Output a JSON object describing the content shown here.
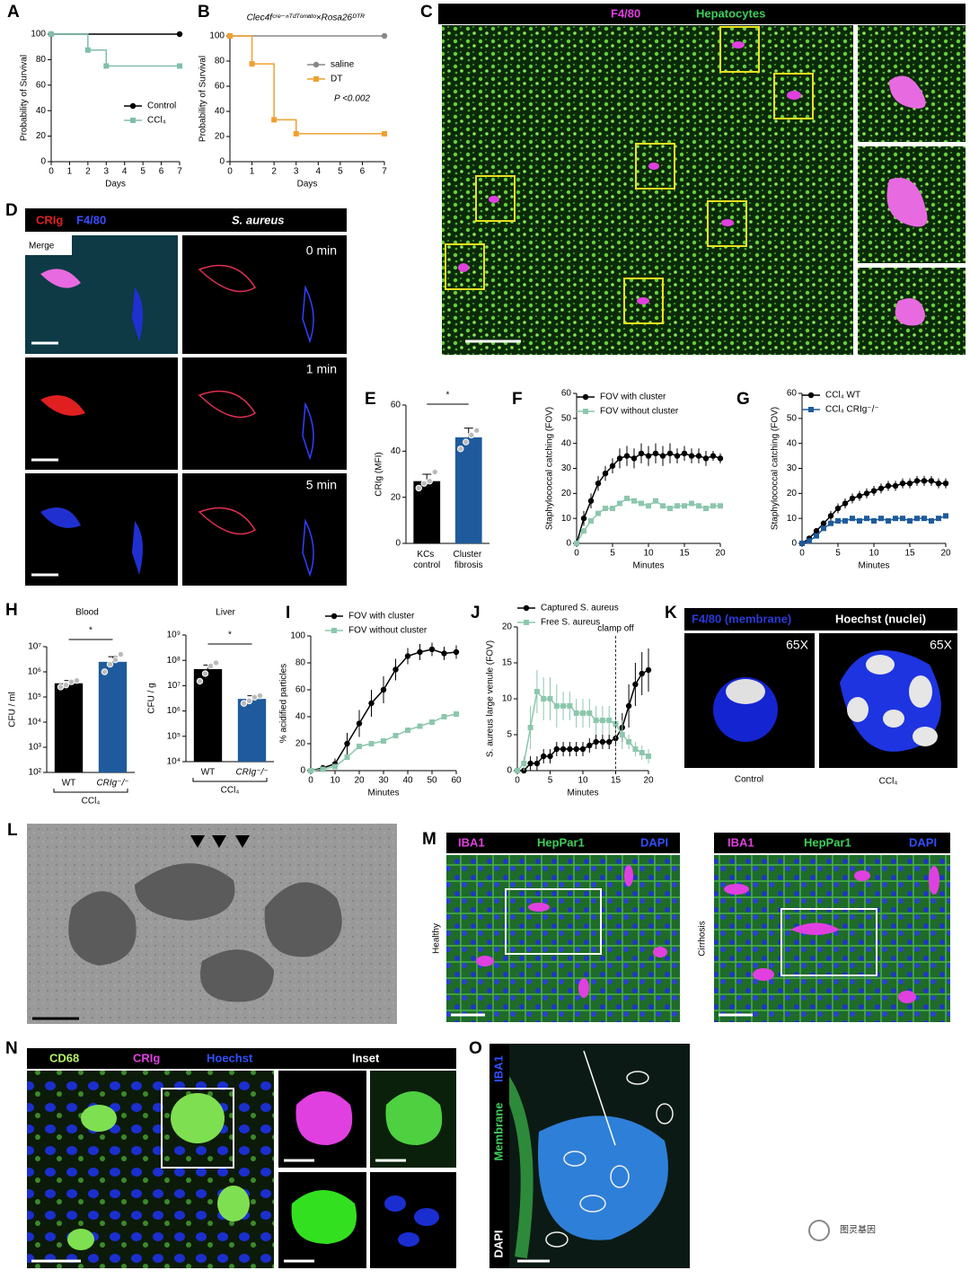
{
  "chart_data": [
    {
      "type": "line",
      "panel": "A",
      "step": true,
      "ylabel": "Probability of Survival",
      "xlabel": "Days",
      "xlim": [
        0,
        7
      ],
      "ylim": [
        0,
        100
      ],
      "xticks": [
        0,
        1,
        2,
        3,
        4,
        5,
        6,
        7
      ],
      "yticks": [
        0,
        20,
        40,
        60,
        80,
        100
      ],
      "series": [
        {
          "name": "Control",
          "color": "#000000",
          "marker": "circle",
          "x": [
            0,
            7
          ],
          "values": [
            100,
            100
          ]
        },
        {
          "name": "CCl₄",
          "color": "#7fbfa8",
          "marker": "square",
          "x": [
            0,
            2,
            3,
            7
          ],
          "values": [
            100,
            87.5,
            75,
            75
          ]
        }
      ]
    },
    {
      "type": "line",
      "panel": "B",
      "step": true,
      "title": "Clec4fᶜʳᵉ⁻ⁿᵀᵈᵀᵒᵐᵃᵗᵒ×Rosa26ᴰᵀᴿ",
      "annotation": "P <0.002",
      "ylabel": "Probability of Survival",
      "xlabel": "Days",
      "xlim": [
        0,
        7
      ],
      "ylim": [
        0,
        100
      ],
      "xticks": [
        0,
        1,
        2,
        3,
        4,
        5,
        6,
        7
      ],
      "yticks": [
        0,
        20,
        40,
        60,
        80,
        100
      ],
      "series": [
        {
          "name": "saline",
          "color": "#888888",
          "marker": "circle",
          "x": [
            0,
            7
          ],
          "values": [
            100,
            100
          ]
        },
        {
          "name": "DT",
          "color": "#f0a030",
          "marker": "square",
          "x": [
            0,
            1,
            2,
            3,
            7
          ],
          "values": [
            100,
            77.8,
            33.3,
            22.2,
            22.2
          ]
        }
      ]
    },
    {
      "type": "bar",
      "panel": "E",
      "ylabel": "CRIg (MFI)",
      "significance": "*",
      "categories": [
        "KCs control",
        "Cluster fibrosis"
      ],
      "values": [
        27,
        46
      ],
      "errors": [
        3,
        4
      ],
      "colors": [
        "#000000",
        "#1f5b9c"
      ],
      "points": [
        [
          24,
          26,
          27,
          31
        ],
        [
          41,
          44,
          47,
          49
        ]
      ],
      "ylim": [
        0,
        60
      ],
      "yticks": [
        0,
        20,
        40,
        60
      ]
    },
    {
      "type": "line",
      "panel": "F",
      "ylabel": "Staphylococcal catching (FOV)",
      "xlabel": "Minutes",
      "xlim": [
        0,
        20
      ],
      "ylim": [
        0,
        60
      ],
      "xticks": [
        0,
        5,
        10,
        15,
        20
      ],
      "yticks": [
        0,
        10,
        20,
        30,
        40,
        50,
        60
      ],
      "series": [
        {
          "name": "FOV with cluster",
          "color": "#000000",
          "marker": "circle",
          "x": [
            0,
            1,
            2,
            3,
            4,
            5,
            6,
            7,
            8,
            9,
            10,
            11,
            12,
            13,
            14,
            15,
            16,
            17,
            18,
            19,
            20
          ],
          "values": [
            0,
            10,
            17,
            24,
            28,
            31,
            34,
            35,
            34,
            36,
            35,
            36,
            35,
            36,
            35,
            36,
            35,
            35,
            34,
            35,
            34
          ],
          "errors": [
            1,
            3,
            3,
            3,
            3,
            3,
            4,
            4,
            4,
            4,
            4,
            4,
            4,
            4,
            3,
            3,
            3,
            3,
            3,
            2,
            2
          ]
        },
        {
          "name": "FOV without cluster",
          "color": "#8cc7ad",
          "marker": "square",
          "x": [
            0,
            1,
            2,
            3,
            4,
            5,
            6,
            7,
            8,
            9,
            10,
            11,
            12,
            13,
            14,
            15,
            16,
            17,
            18,
            19,
            20
          ],
          "values": [
            0,
            5,
            9,
            12,
            14,
            14,
            16,
            18,
            17,
            16,
            15,
            17,
            15,
            14,
            15,
            15,
            16,
            15,
            14,
            15,
            15
          ]
        }
      ]
    },
    {
      "type": "line",
      "panel": "G",
      "ylabel": "Staphylococcal catching (FOV)",
      "xlabel": "Minutes",
      "xlim": [
        0,
        20
      ],
      "ylim": [
        0,
        60
      ],
      "xticks": [
        0,
        5,
        10,
        15,
        20
      ],
      "yticks": [
        0,
        10,
        20,
        30,
        40,
        50,
        60
      ],
      "series": [
        {
          "name": "CCl₄ WT",
          "color": "#000000",
          "marker": "circle",
          "x": [
            0,
            1,
            2,
            3,
            4,
            5,
            6,
            7,
            8,
            9,
            10,
            11,
            12,
            13,
            14,
            15,
            16,
            17,
            18,
            19,
            20
          ],
          "values": [
            0,
            2,
            5,
            8,
            11,
            14,
            16,
            18,
            19,
            20,
            21,
            22,
            23,
            23,
            24,
            24,
            25,
            25,
            25,
            24,
            24
          ],
          "errors": [
            0,
            1,
            1,
            1,
            2,
            2,
            2,
            2,
            2,
            2,
            2,
            2,
            2,
            2,
            2,
            2,
            2,
            2,
            2,
            2,
            2
          ]
        },
        {
          "name": "CCl₄ CRIg⁻/⁻",
          "color": "#1f5b9c",
          "marker": "square",
          "x": [
            0,
            1,
            2,
            3,
            4,
            5,
            6,
            7,
            8,
            9,
            10,
            11,
            12,
            13,
            14,
            15,
            16,
            17,
            18,
            19,
            20
          ],
          "values": [
            0,
            1,
            3,
            6,
            8,
            9,
            9,
            10,
            9,
            10,
            9,
            10,
            9,
            10,
            10,
            9,
            10,
            10,
            9,
            10,
            11
          ]
        }
      ]
    },
    {
      "type": "bar",
      "panel": "H",
      "title": "Blood",
      "ylabel": "CFU / ml",
      "significance": "*",
      "log": true,
      "categories": [
        "WT",
        "CRIg⁻/⁻"
      ],
      "group_label": "CCl₄",
      "values": [
        350000,
        2500000
      ],
      "errors": [
        100000,
        1500000
      ],
      "colors": [
        "#000000",
        "#1f5b9c"
      ],
      "points": [
        [
          250000,
          300000,
          400000,
          450000
        ],
        [
          1000000,
          2000000,
          3000000,
          5000000
        ]
      ],
      "ylim": [
        100,
        10000000
      ],
      "yticks": [
        {
          "value": 100,
          "label": "10²"
        },
        {
          "value": 1000,
          "label": "10³"
        },
        {
          "value": 10000,
          "label": "10⁴"
        },
        {
          "value": 100000,
          "label": "10⁵"
        },
        {
          "value": 1000000,
          "label": "10⁶"
        },
        {
          "value": 10000000,
          "label": "10⁷"
        }
      ]
    },
    {
      "type": "bar",
      "title": "Liver",
      "ylabel": "CFU / g",
      "significance": "*",
      "log": true,
      "categories": [
        "WT",
        "CRIg⁻/⁻"
      ],
      "group_label": "CCl₄",
      "values": [
        45000000,
        3000000
      ],
      "errors": [
        20000000,
        1000000
      ],
      "colors": [
        "#000000",
        "#1f5b9c"
      ],
      "points": [
        [
          15000000,
          30000000,
          60000000,
          80000000
        ],
        [
          2000000,
          2500000,
          3500000,
          4000000
        ]
      ],
      "ylim": [
        10000,
        1000000000
      ],
      "yticks": [
        {
          "value": 10000,
          "label": "10⁴"
        },
        {
          "value": 100000,
          "label": "10⁵"
        },
        {
          "value": 1000000,
          "label": "10⁶"
        },
        {
          "value": 10000000,
          "label": "10⁷"
        },
        {
          "value": 100000000,
          "label": "10⁸"
        },
        {
          "value": 1000000000,
          "label": "10⁹"
        }
      ]
    },
    {
      "type": "line",
      "panel": "I",
      "ylabel": "% acidified particles",
      "xlabel": "Minutes",
      "xlim": [
        0,
        60
      ],
      "ylim": [
        0,
        100
      ],
      "xticks": [
        0,
        10,
        20,
        30,
        40,
        50,
        60
      ],
      "yticks": [
        0,
        20,
        40,
        60,
        80,
        100
      ],
      "series": [
        {
          "name": "FOV with cluster",
          "color": "#000000",
          "marker": "circle",
          "x": [
            0,
            5,
            10,
            15,
            20,
            25,
            30,
            35,
            40,
            45,
            50,
            55,
            60
          ],
          "values": [
            0,
            2,
            5,
            20,
            35,
            50,
            60,
            75,
            85,
            88,
            90,
            87,
            88
          ],
          "errors": [
            0,
            2,
            4,
            8,
            10,
            10,
            10,
            8,
            6,
            6,
            5,
            5,
            5
          ]
        },
        {
          "name": "FOV without cluster",
          "color": "#8cc7ad",
          "marker": "square",
          "x": [
            0,
            5,
            10,
            15,
            20,
            25,
            30,
            35,
            40,
            45,
            50,
            55,
            60
          ],
          "values": [
            0,
            1,
            3,
            10,
            18,
            20,
            22,
            26,
            30,
            33,
            36,
            40,
            42
          ]
        }
      ]
    },
    {
      "type": "line",
      "panel": "J",
      "ylabel": "S. aureus large venule (FOV)",
      "xlabel": "Minutes",
      "vline": {
        "x": 15,
        "label": "clamp off"
      },
      "xlim": [
        0,
        20
      ],
      "ylim": [
        0,
        20
      ],
      "xticks": [
        0,
        5,
        10,
        15,
        20
      ],
      "yticks": [
        0,
        5,
        10,
        15,
        20
      ],
      "series": [
        {
          "name": "Captured S. aureus",
          "color": "#000000",
          "marker": "circle",
          "x": [
            0,
            1,
            2,
            3,
            4,
            5,
            6,
            7,
            8,
            9,
            10,
            11,
            12,
            13,
            14,
            15,
            16,
            17,
            18,
            19,
            20
          ],
          "values": [
            0,
            0,
            1,
            1,
            2,
            2,
            3,
            3,
            3,
            3,
            3,
            3.5,
            4,
            4,
            4,
            4.5,
            6,
            9,
            12,
            13.5,
            14
          ],
          "errors": [
            0,
            0,
            1,
            1,
            1,
            1,
            1,
            1,
            1,
            1,
            1,
            1,
            1,
            1,
            1,
            1,
            2,
            3,
            3,
            3,
            3
          ]
        },
        {
          "name": "Free S. aureus",
          "color": "#8cc7ad",
          "marker": "square",
          "x": [
            0,
            1,
            2,
            3,
            4,
            5,
            6,
            7,
            8,
            9,
            10,
            11,
            12,
            13,
            14,
            15,
            16,
            17,
            18,
            19,
            20
          ],
          "values": [
            0,
            1,
            6,
            11,
            10,
            10,
            9,
            9,
            9,
            8,
            8,
            8,
            7,
            7,
            7,
            6.5,
            5,
            4,
            3,
            2.5,
            2
          ],
          "errors": [
            0,
            1,
            3,
            3,
            3,
            3,
            3,
            2,
            2,
            2,
            2,
            2,
            2,
            2,
            2,
            2,
            2,
            1,
            1,
            1,
            1
          ]
        }
      ]
    }
  ],
  "figures": [
    {
      "panel": "C",
      "labels": [
        "F4/80",
        "Hepatocytes"
      ]
    },
    {
      "panel": "D",
      "labels": [
        "CRIg",
        "F4/80",
        "S. aureus",
        "Merge",
        "0 min",
        "1 min",
        "5 min"
      ]
    },
    {
      "panel": "K",
      "labels": [
        "F4/80 (membrane)",
        "Hoechst (nuclei)",
        "65X",
        "65X",
        "Control",
        "CCl₄"
      ]
    },
    {
      "panel": "L"
    },
    {
      "panel": "M",
      "labels": [
        "IBA1",
        "HepPar1",
        "DAPI",
        "Healthy",
        "IBA1",
        "HepPar1",
        "DAPI",
        "Cirrhosis"
      ]
    },
    {
      "panel": "N",
      "labels": [
        "CD68",
        "CRIg",
        "Hoechst",
        "Inset"
      ]
    },
    {
      "panel": "O",
      "labels": [
        "IBA1",
        "Membrane",
        "DAPI"
      ]
    }
  ],
  "watermark": "图灵基因"
}
